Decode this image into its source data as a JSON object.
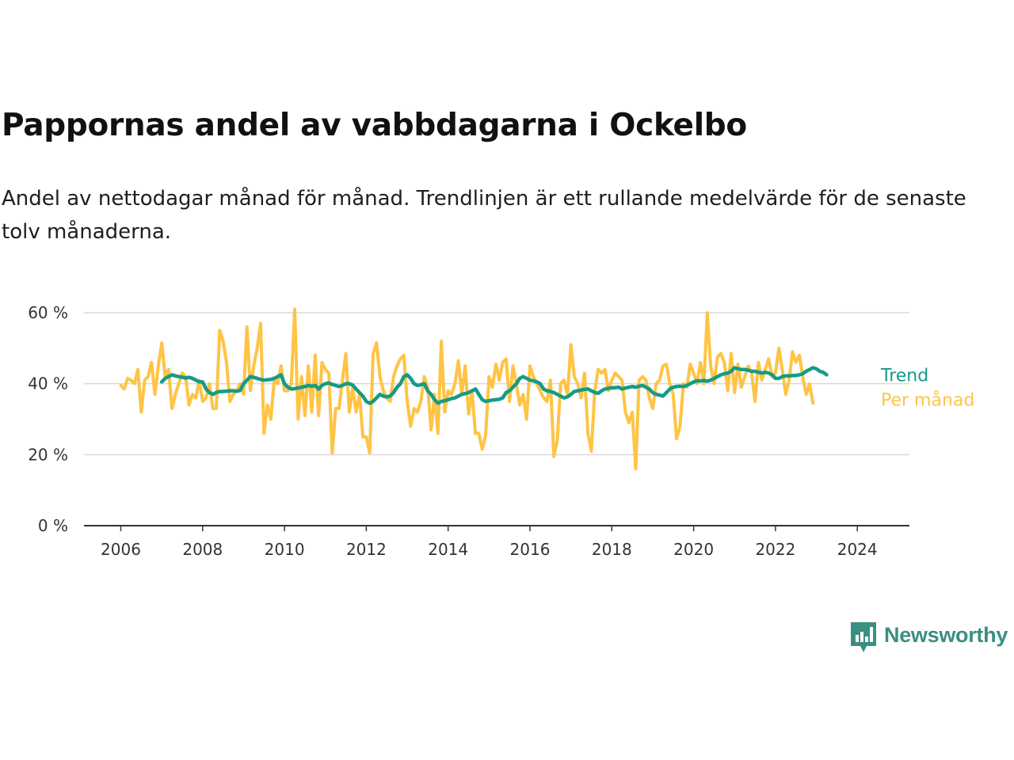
{
  "header": {
    "title": "Pappornas andel av vabbdagarna i Ockelbo",
    "subtitle": "Andel av nettodagar månad för månad. Trendlinjen är ett rullande medelvärde för de senaste tolv månaderna."
  },
  "brand": {
    "name": "Newsworthy",
    "color": "#3a8f82"
  },
  "chart_data": {
    "type": "line",
    "title": "Pappornas andel av vabbdagarna i Ockelbo",
    "subtitle": "Andel av nettodagar månad för månad. Trendlinjen är ett rullande medelvärde för de senaste tolv månaderna.",
    "xlabel": "",
    "ylabel": "",
    "ylim": [
      0,
      60
    ],
    "y_ticks": [
      {
        "value": 0,
        "label": "0 %"
      },
      {
        "value": 20,
        "label": "20 %"
      },
      {
        "value": 40,
        "label": "40 %"
      },
      {
        "value": 60,
        "label": "60 %"
      }
    ],
    "x_range": [
      "2006-01",
      "2024-05"
    ],
    "x_ticks": [
      "2006",
      "2008",
      "2010",
      "2012",
      "2014",
      "2016",
      "2018",
      "2020",
      "2022",
      "2024"
    ],
    "grid": "horizontal",
    "legend": "direct labels at right end of lines",
    "series": [
      {
        "name": "Per månad",
        "color": "#ffc445",
        "start": "2006-01",
        "frequency": "monthly",
        "values": [
          39.5,
          38.5,
          41.5,
          41,
          40,
          44,
          32,
          41,
          42,
          46,
          37,
          45,
          51.5,
          42,
          44,
          33,
          37,
          40,
          43,
          42,
          34,
          37,
          36,
          41,
          35,
          36,
          40,
          33,
          33,
          55,
          52,
          46,
          35,
          37,
          38,
          40,
          37,
          56,
          38,
          45,
          50,
          57,
          26,
          34,
          30,
          41,
          40,
          45,
          38,
          38,
          40,
          61,
          30,
          42,
          31,
          45,
          32,
          48,
          31,
          46,
          44,
          43,
          20.5,
          33,
          33,
          41,
          48.5,
          32,
          39,
          32,
          37,
          25,
          25,
          20.5,
          48.5,
          51.5,
          42,
          38,
          36,
          35,
          42,
          45,
          47,
          48,
          35,
          28,
          33,
          32,
          35,
          42,
          39,
          27,
          37,
          26,
          52,
          32,
          38,
          37,
          40,
          46.5,
          37,
          45,
          31.5,
          38,
          26,
          26,
          21.5,
          25.5,
          42,
          39,
          45.5,
          41,
          46,
          47,
          35,
          45,
          40,
          34,
          37,
          30,
          45,
          42,
          40,
          38,
          36,
          35,
          41,
          19.5,
          24,
          40,
          41,
          37,
          51,
          42,
          40,
          36,
          43,
          26,
          21,
          38,
          44,
          43,
          44,
          38,
          41,
          43,
          42,
          41,
          32,
          29,
          32,
          16,
          41,
          42,
          41,
          36,
          33,
          40,
          41,
          45,
          45.5,
          40,
          37,
          24.5,
          28,
          40,
          39,
          45.5,
          43,
          40,
          46,
          40,
          60,
          45,
          40,
          47.5,
          48.5,
          46,
          38,
          48.5,
          37.5,
          45.5,
          39,
          42,
          45,
          43,
          35,
          46,
          41,
          44,
          47,
          42,
          43,
          50,
          44,
          37,
          41,
          49,
          46,
          48,
          42,
          37,
          40,
          34.5
        ]
      },
      {
        "name": "Trend",
        "color": "#159b86",
        "start": "2007-01",
        "frequency": "monthly",
        "values": [
          40.5,
          41.5,
          42,
          42.5,
          42.2,
          42,
          41.8,
          41.6,
          41.8,
          41.5,
          41,
          40.5,
          40.5,
          38.5,
          37.5,
          37,
          37.5,
          37.8,
          37.8,
          37.9,
          38,
          38,
          37.9,
          38.1,
          40,
          41,
          42,
          41.8,
          41.5,
          41.2,
          41,
          41.1,
          41.2,
          41.5,
          42,
          42.5,
          40,
          39,
          38.5,
          38.6,
          38.8,
          39,
          39.2,
          39.5,
          39.3,
          39.5,
          38.5,
          39.5,
          40,
          40.2,
          39.8,
          39.5,
          39.2,
          39.5,
          40,
          40,
          39.6,
          38.5,
          37.5,
          36.5,
          35,
          34.5,
          35,
          36,
          37,
          36.5,
          36.3,
          36.5,
          37.5,
          39,
          40,
          42,
          42.5,
          41.5,
          40,
          39.5,
          39.7,
          40,
          38,
          37,
          35.5,
          34.5,
          35,
          35.2,
          35.5,
          35.8,
          36,
          36.5,
          37,
          37.2,
          37.5,
          38,
          38.5,
          37,
          35.5,
          35,
          35.2,
          35.4,
          35.5,
          35.6,
          36,
          37.5,
          38,
          39,
          40,
          41.5,
          42,
          41.5,
          41,
          40.8,
          40.5,
          40,
          38.5,
          38,
          37.8,
          37.5,
          37,
          36.5,
          36,
          36.3,
          37,
          37.8,
          38,
          38.2,
          38.4,
          38.5,
          38,
          37.5,
          37.3,
          38,
          38.5,
          38.7,
          38.8,
          38.9,
          39,
          38.5,
          38.8,
          39,
          39.2,
          39,
          39.3,
          39.5,
          39,
          38.5,
          37.5,
          37,
          36.8,
          36.5,
          37.5,
          38.5,
          39,
          39.2,
          39.3,
          39.2,
          39.5,
          40,
          40.5,
          40.8,
          40.8,
          40.9,
          40.7,
          41,
          41.5,
          42,
          42.5,
          42.8,
          43,
          43.5,
          44.5,
          44.2,
          44,
          44,
          43.8,
          43.5,
          43.5,
          43.2,
          43,
          43.2,
          43,
          42.5,
          41.5,
          41.5,
          42,
          42.2,
          42.2,
          42.3,
          42.3,
          42.5,
          42.8,
          43.5,
          44,
          44.5,
          44.2,
          43.5,
          43.2,
          42.5
        ]
      }
    ]
  }
}
